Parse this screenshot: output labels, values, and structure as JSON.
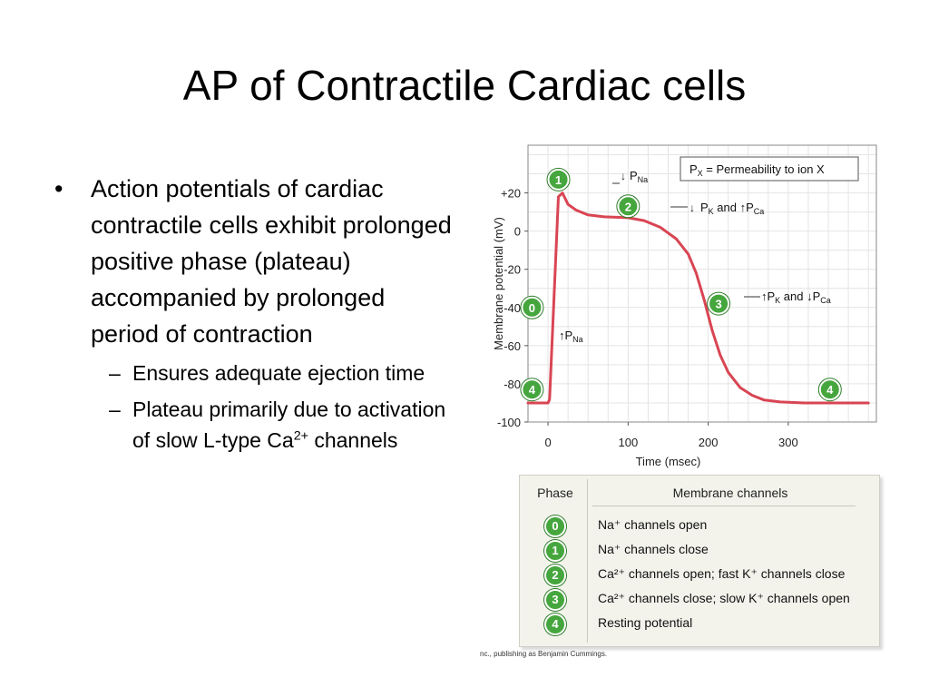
{
  "slide": {
    "title": "AP of Contractile Cardiac cells",
    "bullet_main": "Action potentials of cardiac contractile cells exhibit prolonged positive phase (plateau) accompanied by prolonged period of contraction",
    "sub1": "Ensures adequate ejection time",
    "sub2_pre": "Plateau primarily due to activation of slow L-type Ca",
    "sub2_sup": "2+",
    "sub2_post": " channels",
    "credit": "nc., publishing as Benjamin Cummings."
  },
  "chart_data": {
    "type": "line",
    "title": "",
    "xlabel": "Time (msec)",
    "ylabel": "Membrane potential (mV)",
    "xlim": [
      -25,
      410
    ],
    "ylim": [
      -100,
      45
    ],
    "xticks": [
      0,
      100,
      200,
      300
    ],
    "xtick_labels": [
      "0",
      "100",
      "200",
      "300"
    ],
    "yticks": [
      20,
      0,
      -20,
      -40,
      -60,
      -80,
      -100
    ],
    "ytick_labels": [
      "+20",
      "0",
      "-20",
      "-40",
      "-60",
      "-80",
      "-100"
    ],
    "grid": true,
    "line_color": "#d94553",
    "series": [
      {
        "x": [
          -25,
          0,
          2,
          13,
          18,
          25,
          35,
          50,
          70,
          100,
          120,
          140,
          160,
          175,
          185,
          195,
          205,
          215,
          225,
          240,
          255,
          270,
          290,
          320,
          400
        ],
        "y": [
          -90,
          -90,
          -88,
          18,
          20,
          14,
          11,
          8.5,
          7.5,
          7,
          5.5,
          2,
          -4,
          -12,
          -22,
          -36,
          -52,
          -65,
          -74,
          -82,
          -86,
          -88.5,
          -89.5,
          -90,
          -90
        ]
      }
    ],
    "legend_box": "P_X = Permeability to ion X",
    "annotations": [
      {
        "phase": "0",
        "label": "↑P_Na"
      },
      {
        "phase": "1",
        "label": "↓P_Na"
      },
      {
        "phase": "2",
        "label": "↓P_K and ↑P_Ca"
      },
      {
        "phase": "3",
        "label": "↑P_K and ↓P_Ca"
      },
      {
        "phase": "4",
        "label": ""
      }
    ],
    "table": {
      "headers": [
        "Phase",
        "Membrane channels"
      ],
      "rows": [
        {
          "phase": "0",
          "text": "Na⁺ channels open"
        },
        {
          "phase": "1",
          "text": "Na⁺ channels close"
        },
        {
          "phase": "2",
          "text": "Ca²⁺ channels open; fast K⁺ channels close"
        },
        {
          "phase": "3",
          "text": "Ca²⁺ channels close; slow K⁺ channels open"
        },
        {
          "phase": "4",
          "text": "Resting potential"
        }
      ]
    }
  }
}
